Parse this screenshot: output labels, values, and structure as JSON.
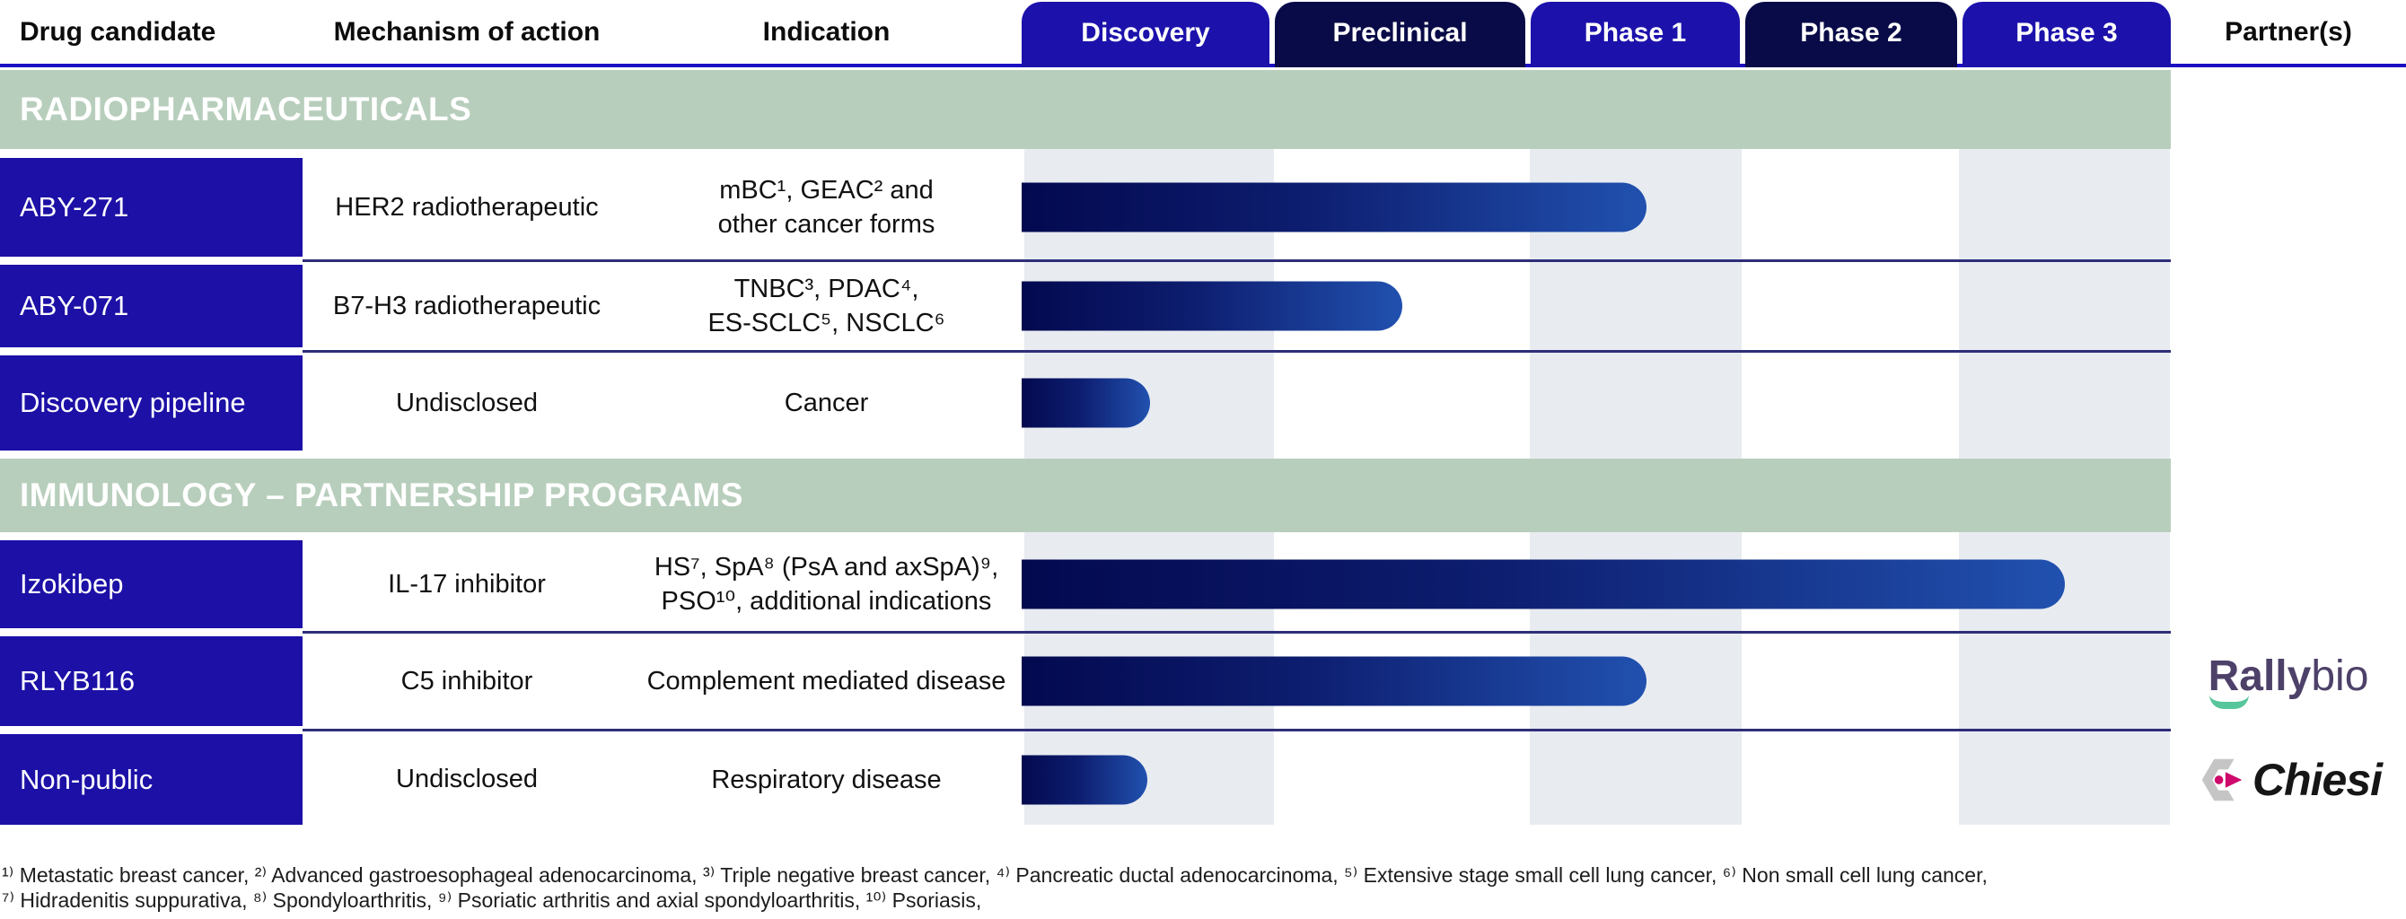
{
  "header": {
    "col_drug": "Drug candidate",
    "col_mechanism": "Mechanism of action",
    "col_indication": "Indication",
    "phases": [
      "Discovery",
      "Preclinical",
      "Phase 1",
      "Phase 2",
      "Phase 3"
    ],
    "col_partner": "Partner(s)"
  },
  "sections": [
    {
      "title": "RADIOPHARMACEUTICALS",
      "rows": [
        {
          "candidate": "ABY-271",
          "mechanism": "HER2 radiotherapeutic",
          "indication": "mBC¹, GEAC² and\nother cancer forms",
          "partner": ""
        },
        {
          "candidate": "ABY-071",
          "mechanism": "B7-H3 radiotherapeutic",
          "indication": "TNBC³, PDAC⁴,\nES-SCLC⁵, NSCLC⁶",
          "partner": ""
        },
        {
          "candidate": "Discovery pipeline",
          "mechanism": "Undisclosed",
          "indication": "Cancer",
          "partner": ""
        }
      ]
    },
    {
      "title": "IMMUNOLOGY – PARTNERSHIP PROGRAMS",
      "rows": [
        {
          "candidate": "Izokibep",
          "mechanism": "IL-17 inhibitor",
          "indication": "HS⁷, SpA⁸ (PsA and axSpA)⁹,\nPSO¹⁰, additional indications",
          "partner": ""
        },
        {
          "candidate": "RLYB116",
          "mechanism": "C5 inhibitor",
          "indication": "Complement mediated disease",
          "partner": "Rallybio"
        },
        {
          "candidate": "Non-public",
          "mechanism": "Undisclosed",
          "indication": "Respiratory disease",
          "partner": "Chiesi"
        }
      ]
    }
  ],
  "partners": {
    "rallybio_bold": "Rally",
    "rallybio_light": "bio",
    "chiesi": "Chiesi"
  },
  "footnotes": [
    "¹⁾ Metastatic breast cancer, ²⁾ Advanced gastroesophageal adenocarcinoma, ³⁾ Triple negative breast cancer, ⁴⁾ Pancreatic ductal adenocarcinoma, ⁵⁾ Extensive stage small cell lung cancer, ⁶⁾ Non small cell lung cancer,",
    "⁷⁾ Hidradenitis suppurativa, ⁸⁾ Spondyloarthritis, ⁹⁾ Psoriatic arthritis and axial spondyloarthritis, ¹⁰⁾ Psoriasis,"
  ],
  "colors": {
    "phase_tab_blue": "#1c12ab",
    "phase_tab_navy": "#080b47",
    "candidate_cell_blue": "#1c10a6",
    "section_band_green": "#b8cebc",
    "column_stripe": "#e8ecf1",
    "header_underline": "#1b10c4",
    "row_separator": "#2e2e78",
    "bar_gradient_start": "#03094f",
    "bar_gradient_end": "#2151af",
    "rallybio_purple": "#4d4169",
    "rallybio_green": "#57c69b",
    "chiesi_gray": "#c5c5c5",
    "chiesi_magenta": "#ce0a6c"
  },
  "chart_data": {
    "type": "bar",
    "orientation": "horizontal",
    "title": "Drug development pipeline",
    "phase_scale": [
      "Discovery",
      "Preclinical",
      "Phase 1",
      "Phase 2",
      "Phase 3"
    ],
    "xlim_phase_units": [
      0,
      5
    ],
    "grid": "alternating column stripes",
    "series": [
      {
        "name": "ABY-271",
        "section": "RADIOPHARMACEUTICALS",
        "progress_phase_units": 2.55,
        "bar_pct": 54.4
      },
      {
        "name": "ABY-071",
        "section": "RADIOPHARMACEUTICALS",
        "progress_phase_units": 1.49,
        "bar_pct": 33.1
      },
      {
        "name": "Discovery pipeline",
        "section": "RADIOPHARMACEUTICALS",
        "progress_phase_units": 0.51,
        "bar_pct": 11.2
      },
      {
        "name": "Izokibep",
        "section": "IMMUNOLOGY – PARTNERSHIP PROGRAMS",
        "progress_phase_units": 4.5,
        "bar_pct": 90.8
      },
      {
        "name": "RLYB116",
        "section": "IMMUNOLOGY – PARTNERSHIP PROGRAMS",
        "progress_phase_units": 2.55,
        "bar_pct": 54.4
      },
      {
        "name": "Non-public",
        "section": "IMMUNOLOGY – PARTNERSHIP PROGRAMS",
        "progress_phase_units": 0.5,
        "bar_pct": 10.9
      }
    ]
  }
}
